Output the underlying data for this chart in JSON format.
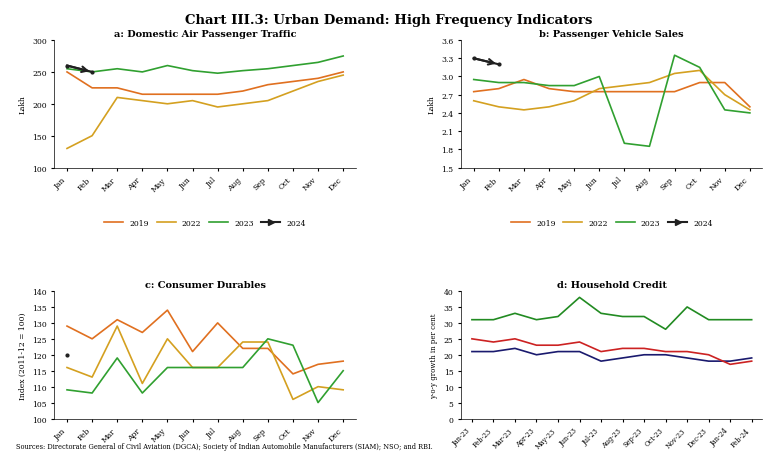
{
  "title": "Chart III.3: Urban Demand: High Frequency Indicators",
  "months_12": [
    "Jan",
    "Feb",
    "Mar",
    "Apr",
    "May",
    "Jun",
    "Jul",
    "Aug",
    "Sep",
    "Oct",
    "Nov",
    "Dec"
  ],
  "panel_a": {
    "title": "a: Domestic Air Passenger Traffic",
    "ylabel": "Lakh",
    "ylim": [
      100,
      300
    ],
    "yticks": [
      100,
      150,
      200,
      250,
      300
    ],
    "data_2019": [
      250,
      225,
      225,
      215,
      215,
      215,
      215,
      220,
      230,
      235,
      240,
      250
    ],
    "data_2022": [
      130,
      150,
      210,
      205,
      200,
      205,
      195,
      200,
      205,
      220,
      235,
      245
    ],
    "data_2023": [
      255,
      250,
      255,
      250,
      260,
      252,
      248,
      252,
      255,
      260,
      265,
      275
    ],
    "data_2024": [
      260,
      250,
      null,
      null,
      null,
      null,
      null,
      null,
      null,
      null,
      null,
      null
    ]
  },
  "panel_b": {
    "title": "b: Passenger Vehicle Sales",
    "ylabel": "Lakh",
    "ylim": [
      1.5,
      3.6
    ],
    "yticks": [
      1.5,
      1.8,
      2.1,
      2.4,
      2.7,
      3.0,
      3.3,
      3.6
    ],
    "data_2019": [
      2.75,
      2.8,
      2.95,
      2.8,
      2.75,
      2.75,
      2.75,
      2.75,
      2.75,
      2.9,
      2.9,
      2.5
    ],
    "data_2022": [
      2.6,
      2.5,
      2.45,
      2.5,
      2.6,
      2.8,
      2.85,
      2.9,
      3.05,
      3.1,
      2.7,
      2.45
    ],
    "data_2023": [
      2.95,
      2.9,
      2.9,
      2.85,
      2.85,
      3.0,
      1.9,
      1.85,
      3.35,
      3.15,
      2.45,
      2.4
    ],
    "data_2024": [
      3.3,
      3.2,
      null,
      null,
      null,
      null,
      null,
      null,
      null,
      null,
      null,
      null
    ]
  },
  "panel_c": {
    "title": "c: Consumer Durables",
    "ylabel": "Index (2011-12 = 100)",
    "ylim": [
      100,
      140
    ],
    "yticks": [
      100,
      105,
      110,
      115,
      120,
      125,
      130,
      135,
      140
    ],
    "data_2019": [
      129,
      125,
      131,
      127,
      134,
      121,
      130,
      122,
      122,
      114,
      117,
      118
    ],
    "data_2022": [
      116,
      113,
      129,
      111,
      125,
      116,
      116,
      124,
      124,
      106,
      110,
      109
    ],
    "data_2023": [
      109,
      108,
      119,
      108,
      116,
      116,
      116,
      116,
      125,
      123,
      105,
      115
    ],
    "data_2024": [
      120,
      null,
      null,
      null,
      null,
      null,
      null,
      null,
      null,
      null,
      null,
      null
    ]
  },
  "panel_d": {
    "title": "d: Household Credit",
    "ylabel": "y-o-y growth in per cent",
    "ylim": [
      0,
      40
    ],
    "yticks": [
      0,
      5,
      10,
      15,
      20,
      25,
      30,
      35,
      40
    ],
    "x_labels": [
      "Jan-23",
      "Feb-23",
      "Mar-23",
      "Apr-23",
      "May-23",
      "Jun-23",
      "Jul-23",
      "Aug-23",
      "Sep-23",
      "Oct-23",
      "Nov-23",
      "Dec-23",
      "Jan-24",
      "Feb-24"
    ],
    "personal_loan": [
      21,
      21,
      22,
      20,
      21,
      21,
      18,
      19,
      20,
      20,
      19,
      18,
      18,
      19
    ],
    "vehicle_loan": [
      25,
      24,
      25,
      23,
      23,
      24,
      21,
      22,
      22,
      21,
      21,
      20,
      17,
      18
    ],
    "credit_card": [
      31,
      31,
      33,
      31,
      32,
      38,
      33,
      32,
      32,
      28,
      35,
      31,
      31,
      31
    ]
  },
  "color_2019": "#E07020",
  "color_2022": "#D4A020",
  "color_2023": "#30A030",
  "color_2024": "#202020",
  "color_personal": "#1a1a6e",
  "color_vehicle": "#cc2222",
  "color_credit": "#228B22",
  "sources": "Sources: Directorate General of Civil Aviation (DGCA); Society of Indian Automobile Manufacturers (SIAM); NSO; and RBI."
}
